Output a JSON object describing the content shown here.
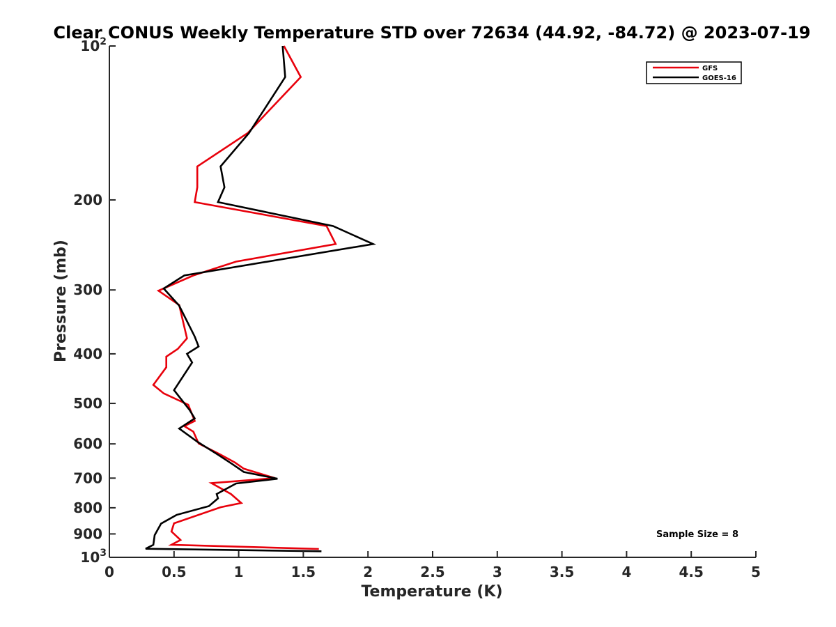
{
  "chart_data": {
    "type": "line",
    "title": "Clear CONUS Weekly Temperature STD over 72634 (44.92, -84.72) @ 2023-07-19",
    "xlabel": "Temperature (K)",
    "ylabel": "Pressure (mb)",
    "xlim": [
      0,
      5
    ],
    "ylim": [
      100,
      1000
    ],
    "yscale": "log",
    "yreverse": true,
    "x_ticks": [
      {
        "value": 0,
        "label": "0"
      },
      {
        "value": 0.5,
        "label": "0.5"
      },
      {
        "value": 1,
        "label": "1"
      },
      {
        "value": 1.5,
        "label": "1.5"
      },
      {
        "value": 2,
        "label": "2"
      },
      {
        "value": 2.5,
        "label": "2.5"
      },
      {
        "value": 3,
        "label": "3"
      },
      {
        "value": 3.5,
        "label": "3.5"
      },
      {
        "value": 4,
        "label": "4"
      },
      {
        "value": 4.5,
        "label": "4.5"
      },
      {
        "value": 5,
        "label": "5"
      }
    ],
    "y_ticks": [
      {
        "value": 100,
        "label": "10",
        "exp": "2"
      },
      {
        "value": 200,
        "label": "200"
      },
      {
        "value": 300,
        "label": "300"
      },
      {
        "value": 400,
        "label": "400"
      },
      {
        "value": 500,
        "label": "500"
      },
      {
        "value": 600,
        "label": "600"
      },
      {
        "value": 700,
        "label": "700"
      },
      {
        "value": 800,
        "label": "800"
      },
      {
        "value": 900,
        "label": "900"
      },
      {
        "value": 1000,
        "label": "10",
        "exp": "3"
      }
    ],
    "legend_position": "top-right",
    "series": [
      {
        "name": "GFS",
        "color": "#e8000b",
        "points": [
          [
            1.35,
            100
          ],
          [
            1.48,
            115
          ],
          [
            1.07,
            148
          ],
          [
            0.68,
            172
          ],
          [
            0.68,
            189
          ],
          [
            0.66,
            202
          ],
          [
            1.68,
            225
          ],
          [
            1.75,
            244
          ],
          [
            0.98,
            264
          ],
          [
            0.65,
            281
          ],
          [
            0.38,
            301
          ],
          [
            0.54,
            321
          ],
          [
            0.6,
            373
          ],
          [
            0.53,
            391
          ],
          [
            0.44,
            405
          ],
          [
            0.44,
            425
          ],
          [
            0.34,
            460
          ],
          [
            0.42,
            478
          ],
          [
            0.61,
            503
          ],
          [
            0.66,
            541
          ],
          [
            0.58,
            554
          ],
          [
            0.65,
            568
          ],
          [
            0.69,
            599
          ],
          [
            0.85,
            628
          ],
          [
            0.97,
            652
          ],
          [
            1.04,
            671
          ],
          [
            1.28,
            700
          ],
          [
            0.79,
            716
          ],
          [
            0.94,
            752
          ],
          [
            1.02,
            783
          ],
          [
            0.86,
            798
          ],
          [
            0.5,
            858
          ],
          [
            0.48,
            890
          ],
          [
            0.55,
            925
          ],
          [
            0.48,
            945
          ],
          [
            1.62,
            963
          ]
        ]
      },
      {
        "name": "GOES-16",
        "color": "#000000",
        "points": [
          [
            1.34,
            100
          ],
          [
            1.36,
            115
          ],
          [
            1.08,
            148
          ],
          [
            0.86,
            172
          ],
          [
            0.89,
            189
          ],
          [
            0.84,
            202
          ],
          [
            1.73,
            225
          ],
          [
            2.04,
            244
          ],
          [
            0.58,
            281
          ],
          [
            0.42,
            298
          ],
          [
            0.54,
            322
          ],
          [
            0.66,
            370
          ],
          [
            0.69,
            387
          ],
          [
            0.6,
            400
          ],
          [
            0.64,
            416
          ],
          [
            0.5,
            471
          ],
          [
            0.62,
            515
          ],
          [
            0.66,
            535
          ],
          [
            0.54,
            560
          ],
          [
            0.68,
            594
          ],
          [
            0.84,
            630
          ],
          [
            0.95,
            657
          ],
          [
            1.04,
            681
          ],
          [
            1.3,
            702
          ],
          [
            0.98,
            717
          ],
          [
            0.83,
            752
          ],
          [
            0.84,
            767
          ],
          [
            0.77,
            794
          ],
          [
            0.52,
            826
          ],
          [
            0.4,
            859
          ],
          [
            0.35,
            905
          ],
          [
            0.34,
            945
          ],
          [
            0.28,
            962
          ],
          [
            1.64,
            973
          ]
        ]
      }
    ],
    "annotation": "Sample Size = 8"
  }
}
